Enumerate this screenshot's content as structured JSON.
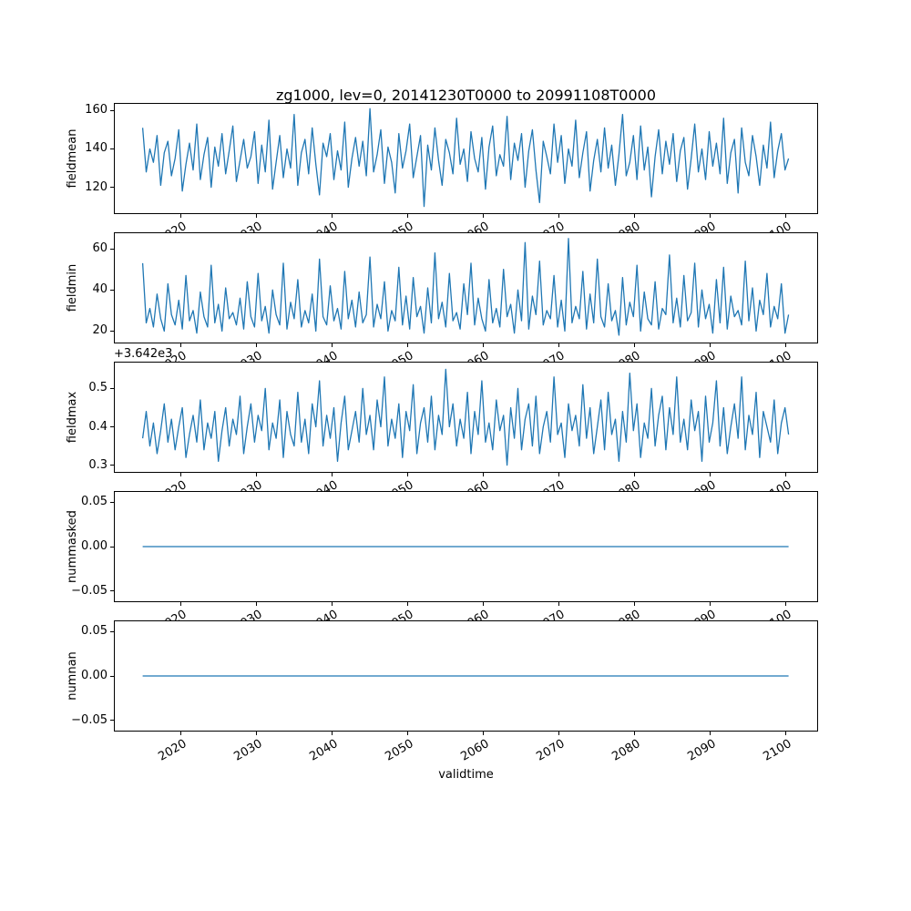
{
  "chart_data": {
    "type": "line",
    "title": "zg1000, lev=0, 20141230T0000 to 20991108T0000",
    "xlabel": "validtime",
    "line_color": "#1f77b4",
    "x_start": 2015.0,
    "x_end": 2100.4,
    "xlim": [
      2011.2,
      2104.3
    ],
    "xticks": [
      2020,
      2030,
      2040,
      2050,
      2060,
      2070,
      2080,
      2090,
      2100
    ],
    "xtick_labels": [
      "2020",
      "2030",
      "2040",
      "2050",
      "2060",
      "2070",
      "2080",
      "2090",
      "2100"
    ],
    "charts": [
      {
        "ylabel": "fieldmean",
        "ylim": [
          106,
          164
        ],
        "yticks": [
          120,
          140,
          160
        ],
        "ytick_labels": [
          "120",
          "140",
          "160"
        ],
        "values": [
          151,
          128,
          140,
          133,
          147,
          121,
          138,
          144,
          126,
          135,
          150,
          118,
          132,
          143,
          129,
          153,
          124,
          137,
          146,
          120,
          141,
          131,
          148,
          127,
          139,
          152,
          123,
          134,
          145,
          130,
          136,
          149,
          122,
          142,
          128,
          155,
          119,
          133,
          147,
          125,
          140,
          130,
          158,
          121,
          138,
          145,
          127,
          151,
          132,
          116,
          143,
          136,
          148,
          124,
          139,
          129,
          154,
          120,
          135,
          146,
          131,
          144,
          126,
          161,
          128,
          137,
          150,
          122,
          141,
          133,
          117,
          148,
          130,
          139,
          153,
          125,
          136,
          147,
          110,
          142,
          129,
          151,
          134,
          121,
          145,
          138,
          127,
          156,
          132,
          140,
          123,
          149,
          135,
          128,
          146,
          119,
          141,
          152,
          126,
          137,
          131,
          157,
          124,
          143,
          134,
          148,
          120,
          139,
          150,
          129,
          112,
          144,
          136,
          127,
          153,
          133,
          147,
          122,
          140,
          131,
          155,
          125,
          138,
          149,
          118,
          134,
          145,
          128,
          151,
          130,
          142,
          121,
          137,
          158,
          126,
          133,
          147,
          124,
          152,
          129,
          141,
          115,
          136,
          150,
          127,
          144,
          132,
          148,
          123,
          139,
          146,
          119,
          135,
          153,
          128,
          140,
          124,
          149,
          131,
          143,
          127,
          156,
          122,
          138,
          145,
          117,
          151,
          133,
          126,
          147,
          136,
          121,
          142,
          130,
          154,
          125,
          139,
          148,
          129,
          135
        ]
      },
      {
        "ylabel": "fieldmin",
        "ylim": [
          14,
          68
        ],
        "yticks": [
          20,
          40,
          60
        ],
        "ytick_labels": [
          "20",
          "40",
          "60"
        ],
        "values": [
          53,
          24,
          31,
          22,
          38,
          26,
          20,
          43,
          28,
          23,
          35,
          21,
          47,
          25,
          30,
          19,
          39,
          27,
          22,
          52,
          24,
          33,
          20,
          41,
          26,
          29,
          23,
          36,
          21,
          44,
          27,
          22,
          48,
          25,
          32,
          19,
          40,
          28,
          23,
          53,
          21,
          34,
          26,
          45,
          22,
          30,
          24,
          38,
          20,
          55,
          27,
          23,
          42,
          25,
          31,
          21,
          49,
          26,
          35,
          22,
          39,
          24,
          28,
          56,
          22,
          33,
          26,
          44,
          20,
          30,
          25,
          51,
          23,
          37,
          21,
          46,
          27,
          32,
          19,
          41,
          24,
          58,
          26,
          34,
          22,
          48,
          25,
          29,
          21,
          43,
          28,
          53,
          23,
          36,
          26,
          20,
          45,
          24,
          31,
          22,
          50,
          27,
          33,
          19,
          40,
          25,
          63,
          21,
          37,
          28,
          54,
          23,
          30,
          26,
          47,
          22,
          35,
          20,
          65,
          24,
          32,
          26,
          49,
          21,
          38,
          24,
          55,
          27,
          22,
          43,
          25,
          30,
          18,
          46,
          23,
          34,
          27,
          52,
          20,
          39,
          26,
          23,
          44,
          21,
          31,
          28,
          57,
          24,
          36,
          22,
          47,
          25,
          29,
          53,
          22,
          40,
          26,
          33,
          19,
          45,
          24,
          51,
          21,
          37,
          27,
          30,
          23,
          54,
          25,
          41,
          20,
          35,
          28,
          48,
          22,
          32,
          26,
          43,
          19,
          28
        ]
      },
      {
        "ylabel": "fieldmax",
        "offset_text": "+3.642e3",
        "ylim": [
          0.28,
          0.57
        ],
        "yticks": [
          0.3,
          0.4,
          0.5
        ],
        "ytick_labels": [
          "0.3",
          "0.4",
          "0.5"
        ],
        "values": [
          0.37,
          0.44,
          0.35,
          0.41,
          0.33,
          0.39,
          0.46,
          0.36,
          0.42,
          0.34,
          0.4,
          0.45,
          0.32,
          0.38,
          0.43,
          0.36,
          0.47,
          0.34,
          0.41,
          0.37,
          0.44,
          0.31,
          0.39,
          0.45,
          0.35,
          0.42,
          0.38,
          0.48,
          0.33,
          0.4,
          0.46,
          0.36,
          0.43,
          0.39,
          0.5,
          0.34,
          0.41,
          0.37,
          0.47,
          0.32,
          0.44,
          0.38,
          0.35,
          0.49,
          0.36,
          0.42,
          0.33,
          0.46,
          0.4,
          0.52,
          0.35,
          0.43,
          0.37,
          0.45,
          0.31,
          0.41,
          0.48,
          0.34,
          0.39,
          0.44,
          0.36,
          0.5,
          0.38,
          0.43,
          0.34,
          0.47,
          0.4,
          0.53,
          0.35,
          0.42,
          0.37,
          0.46,
          0.32,
          0.44,
          0.39,
          0.51,
          0.33,
          0.41,
          0.45,
          0.36,
          0.48,
          0.34,
          0.43,
          0.38,
          0.55,
          0.4,
          0.46,
          0.35,
          0.42,
          0.37,
          0.49,
          0.33,
          0.44,
          0.38,
          0.52,
          0.36,
          0.41,
          0.34,
          0.47,
          0.39,
          0.43,
          0.3,
          0.45,
          0.37,
          0.5,
          0.34,
          0.42,
          0.46,
          0.35,
          0.48,
          0.33,
          0.4,
          0.44,
          0.36,
          0.53,
          0.38,
          0.41,
          0.32,
          0.46,
          0.39,
          0.43,
          0.35,
          0.51,
          0.37,
          0.45,
          0.33,
          0.4,
          0.47,
          0.34,
          0.49,
          0.38,
          0.42,
          0.31,
          0.44,
          0.36,
          0.54,
          0.39,
          0.46,
          0.32,
          0.41,
          0.37,
          0.5,
          0.35,
          0.43,
          0.48,
          0.34,
          0.45,
          0.38,
          0.53,
          0.36,
          0.42,
          0.34,
          0.47,
          0.39,
          0.44,
          0.31,
          0.48,
          0.36,
          0.41,
          0.52,
          0.35,
          0.45,
          0.33,
          0.4,
          0.46,
          0.37,
          0.53,
          0.34,
          0.43,
          0.38,
          0.49,
          0.32,
          0.44,
          0.4,
          0.36,
          0.47,
          0.33,
          0.41,
          0.45,
          0.38
        ]
      },
      {
        "ylabel": "nummasked",
        "ylim": [
          -0.0625,
          0.0625
        ],
        "yticks": [
          -0.05,
          0,
          0.05
        ],
        "ytick_labels": [
          "−0.05",
          "0.00",
          "0.05"
        ],
        "values": [
          0,
          0
        ]
      },
      {
        "ylabel": "numnan",
        "ylim": [
          -0.0625,
          0.0625
        ],
        "yticks": [
          -0.05,
          0,
          0.05
        ],
        "ytick_labels": [
          "−0.05",
          "0.00",
          "0.05"
        ],
        "values": [
          0,
          0
        ]
      }
    ]
  }
}
